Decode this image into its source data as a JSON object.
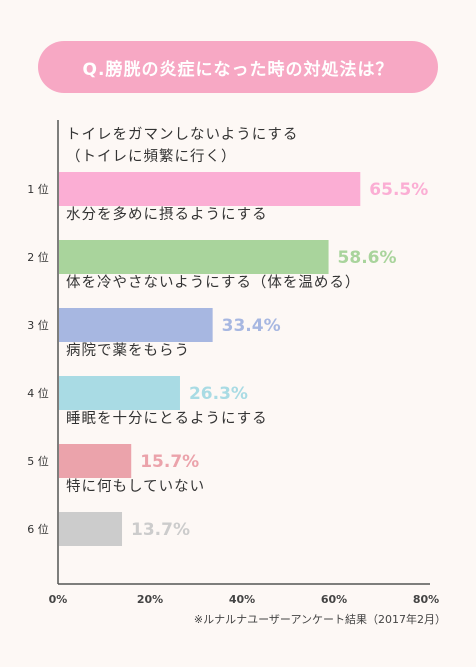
{
  "chart_data": {
    "type": "bar",
    "orientation": "horizontal",
    "title": "Q.膀胱の炎症になった時の対処法は？",
    "categories": [
      {
        "rank": "1 位",
        "label": [
          "トイレをガマンしないようにする",
          "（トイレに頻繁に行く）"
        ],
        "value": 65.5,
        "value_label": "65.5%",
        "color": "#fbaed4"
      },
      {
        "rank": "2 位",
        "label": [
          "水分を多めに摂るようにする"
        ],
        "value": 58.6,
        "value_label": "58.6%",
        "color": "#a9d49c"
      },
      {
        "rank": "3 位",
        "label": [
          "体を冷やさないようにする（体を温める）"
        ],
        "value": 33.4,
        "value_label": "33.4%",
        "color": "#a7b7e1"
      },
      {
        "rank": "4 位",
        "label": [
          "病院で薬をもらう"
        ],
        "value": 26.3,
        "value_label": "26.3%",
        "color": "#a9dbe4"
      },
      {
        "rank": "5 位",
        "label": [
          "睡眠を十分にとるようにする"
        ],
        "value": 15.7,
        "value_label": "15.7%",
        "color": "#eba3ab"
      },
      {
        "rank": "6 位",
        "label": [
          "特に何もしていない"
        ],
        "value": 13.7,
        "value_label": "13.7%",
        "color": "#cccccc"
      }
    ],
    "xlim": [
      0,
      80
    ],
    "x_ticks": [
      "0%",
      "20%",
      "40%",
      "60%",
      "80%"
    ],
    "grid": false,
    "footnote": "※ルナルナユーザーアンケート結果（2017年2月）"
  }
}
